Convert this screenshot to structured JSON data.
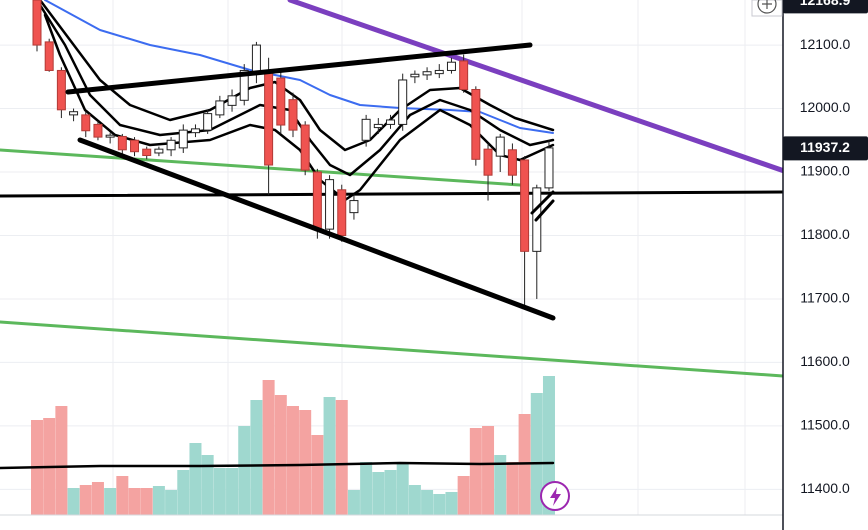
{
  "chart_data": {
    "type": "candlestick",
    "open": [
      12171,
      12105,
      12060,
      11990,
      11990,
      11975,
      11955,
      11956,
      11950,
      11936,
      11930,
      11935,
      11938,
      11962,
      11966,
      11990,
      12005,
      12013,
      12055,
      12060,
      12048,
      12014,
      11974,
      11900,
      11810,
      11872,
      11836,
      11950,
      11970,
      11975,
      11975,
      12050,
      12053,
      12055,
      12060,
      12075,
      12030,
      11936,
      11925,
      11935,
      11919,
      11775,
      11875
    ],
    "high": [
      12171,
      12110,
      12065,
      12000,
      11995,
      11980,
      11962,
      11960,
      11955,
      11940,
      11940,
      11955,
      11975,
      11975,
      11998,
      12020,
      12030,
      12070,
      12105,
      12080,
      12060,
      12025,
      11980,
      11905,
      11895,
      11880,
      11865,
      11990,
      11985,
      11990,
      12055,
      12060,
      12065,
      12070,
      12080,
      12085,
      12035,
      11945,
      11960,
      11945,
      11925,
      11880,
      11950
    ],
    "low": [
      12090,
      12058,
      11985,
      11980,
      11955,
      11950,
      11945,
      11925,
      11925,
      11920,
      11925,
      11925,
      11930,
      11955,
      11960,
      11985,
      11995,
      12005,
      12040,
      11864,
      11960,
      11955,
      11895,
      11795,
      11795,
      11790,
      11825,
      11940,
      11960,
      11968,
      11965,
      12040,
      12045,
      12048,
      12055,
      12025,
      11910,
      11855,
      11900,
      11880,
      11683,
      11700,
      11870
    ],
    "close": [
      12100,
      12060,
      11998,
      11995,
      11965,
      11955,
      11958,
      11935,
      11932,
      11926,
      11936,
      11950,
      11966,
      11968,
      11992,
      12012,
      12020,
      12060,
      12100,
      11911,
      11974,
      11966,
      11903,
      11809,
      11888,
      11800,
      11855,
      11983,
      11975,
      11982,
      12045,
      12054,
      12058,
      12060,
      12073,
      12030,
      11920,
      11895,
      11955,
      11895,
      11775,
      11875,
      11938
    ],
    "volume": [
      95,
      97,
      109,
      27,
      30,
      33,
      27,
      39,
      27,
      27,
      29,
      25,
      45,
      72,
      60,
      47,
      47,
      89,
      115,
      135,
      120,
      109,
      105,
      80,
      118,
      115,
      25,
      53,
      43,
      45,
      53,
      30,
      25,
      21,
      23,
      39,
      87,
      89,
      60,
      53,
      101,
      122,
      139
    ],
    "up_color": "#ffffff",
    "down_color": "#ef5350",
    "up_volume_color": "#9fd8cf",
    "down_volume_color": "#f4a3a1",
    "ylim": [
      11336,
      12171
    ],
    "yticks": [
      {
        "value": 12100,
        "label": "12100.0"
      },
      {
        "value": 12000,
        "label": "12000.0"
      },
      {
        "value": 11900,
        "label": "11900.0"
      },
      {
        "value": 11800,
        "label": "11800.0"
      },
      {
        "value": 11700,
        "label": "11700.0"
      },
      {
        "value": 11600,
        "label": "11600.0"
      },
      {
        "value": 11500,
        "label": "11500.0"
      },
      {
        "value": 11400,
        "label": "11400.0"
      }
    ],
    "price_labels": [
      12168.9,
      11937.2
    ],
    "grid": true
  }
}
